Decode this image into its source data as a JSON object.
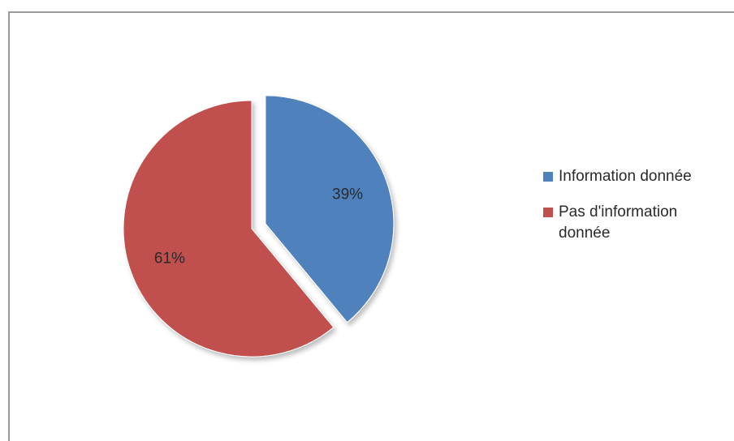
{
  "chart_data": {
    "type": "pie",
    "slices": [
      {
        "label": "Information donnée",
        "value": 39,
        "data_label": "39%",
        "color": "#4f81bd",
        "exploded": true
      },
      {
        "label": "Pas d'information donnée",
        "value": 61,
        "data_label": "61%",
        "color": "#c0504d",
        "exploded": false
      }
    ],
    "legend_position": "right",
    "title": ""
  },
  "legend": {
    "items": [
      {
        "label": "Information donnée",
        "color": "#4f81bd"
      },
      {
        "label": "Pas d'information donnée",
        "color": "#c0504d"
      }
    ]
  }
}
